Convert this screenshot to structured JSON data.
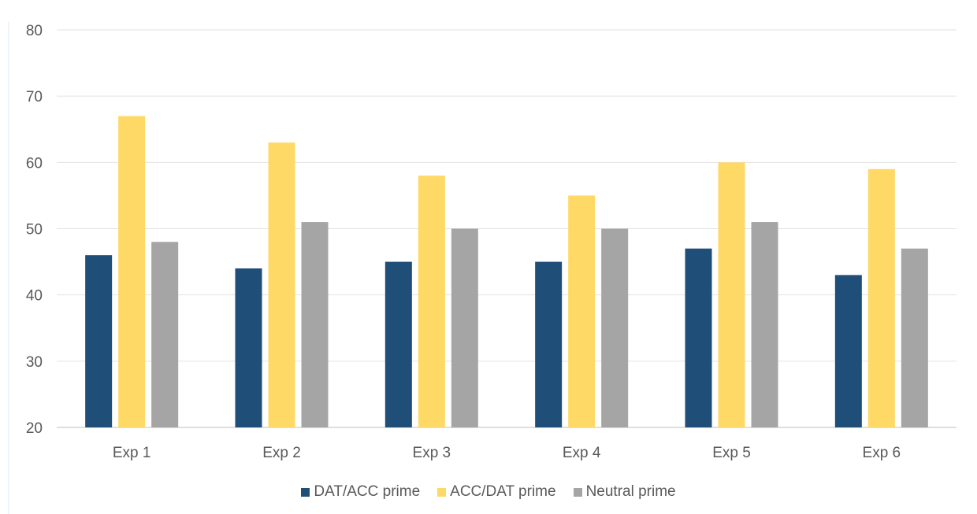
{
  "colors": {
    "series_1": "#1f4e79",
    "series_2": "#ffd966",
    "series_3": "#a5a5a5",
    "grid": "#e3e3e3",
    "axis": "#bfbfbf",
    "text": "#595959"
  },
  "chart_data": {
    "type": "bar",
    "categories": [
      "Exp 1",
      "Exp 2",
      "Exp 3",
      "Exp 4",
      "Exp 5",
      "Exp 6"
    ],
    "series": [
      {
        "name": "DAT/ACC prime",
        "values": [
          46,
          44,
          45,
          45,
          47,
          43
        ]
      },
      {
        "name": "ACC/DAT prime",
        "values": [
          67,
          63,
          58,
          55,
          60,
          59
        ]
      },
      {
        "name": "Neutral prime",
        "values": [
          48,
          51,
          50,
          50,
          51,
          47
        ]
      }
    ],
    "y_ticks": [
      "20",
      "30",
      "40",
      "50",
      "60",
      "70",
      "80"
    ],
    "ylim": [
      20,
      80
    ],
    "grid": true,
    "legend_position": "bottom"
  }
}
